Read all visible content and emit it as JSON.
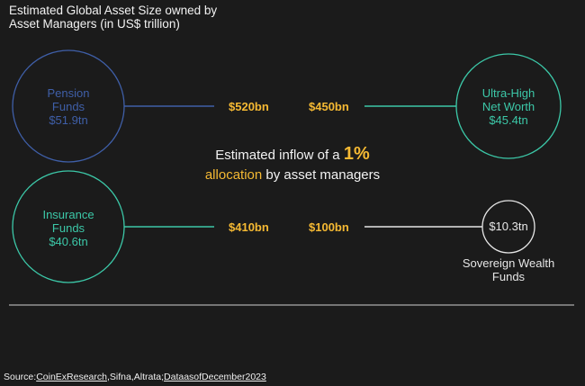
{
  "title": {
    "line1": "Estimated Global Asset Size owned by",
    "line2": "Asset Managers (in US$ trillion)"
  },
  "center": {
    "prefix": "Estimated inflow of a",
    "percent": "1%",
    "highlight": "allocation",
    "suffix": "by asset managers"
  },
  "nodes": {
    "pension": {
      "name_line1": "Pension",
      "name_line2": "Funds",
      "value": "$51.9tn",
      "color": "#3f5fa8"
    },
    "uhnw": {
      "name_line1": "Ultra-High",
      "name_line2": "Net Worth",
      "value": "$45.4tn",
      "color": "#3cc8a8"
    },
    "insurance": {
      "name_line1": "Insurance",
      "name_line2": "Funds",
      "value": "$40.6tn",
      "color": "#3cc8a8"
    },
    "sovereign": {
      "value": "$10.3tn",
      "name_line1": "Sovereign Wealth",
      "name_line2": "Funds",
      "color": "#e6e6e6"
    }
  },
  "flows": {
    "pension": "$520bn",
    "uhnw": "$450bn",
    "insurance": "$410bn",
    "sovereign": "$100bn"
  },
  "accent_color": "#f5b933",
  "source": {
    "prefix": "Source:",
    "coinex": "CoinExResearch",
    "middle": ",Sifna,Altrata;",
    "date": "DataasofDecember2023"
  }
}
